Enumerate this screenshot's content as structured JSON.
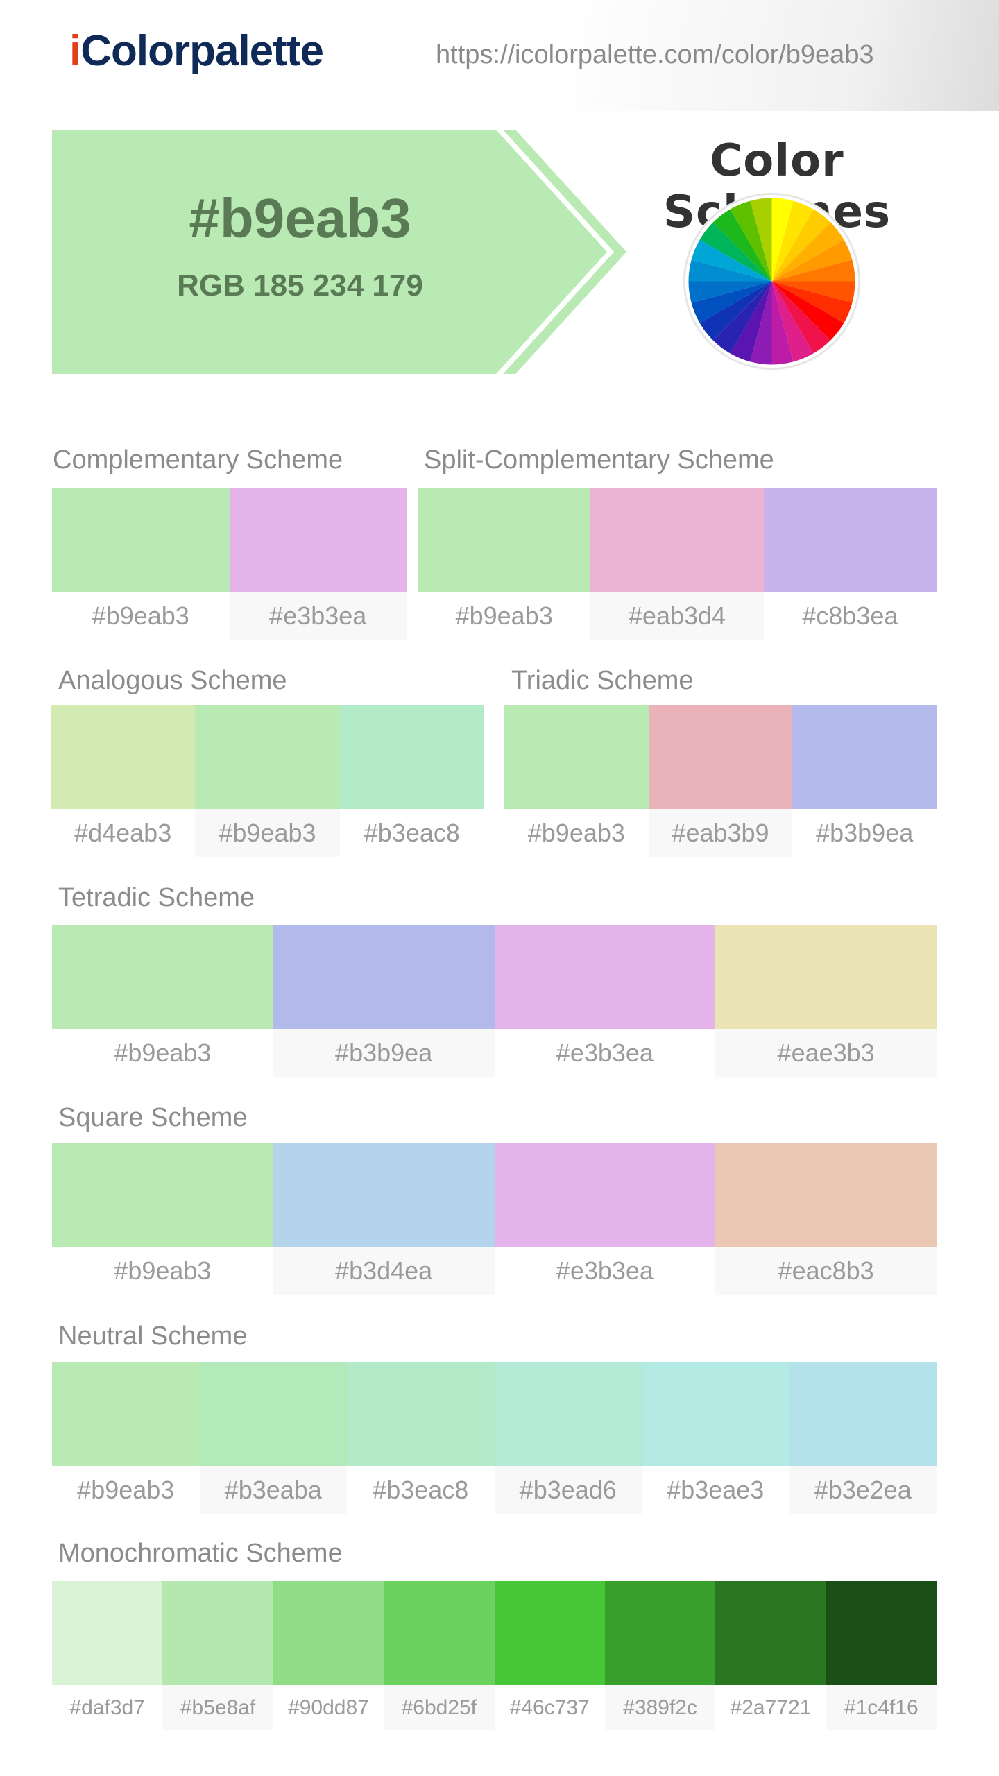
{
  "header": {
    "logo_i": "i",
    "logo_rest": "Colorpalette",
    "url": "https://icolorpalette.com/color/b9eab3"
  },
  "hero": {
    "hex": "#b9eab3",
    "rgb": "RGB 185 234 179",
    "color": "#b9eab3",
    "text_color": "#5a7a55"
  },
  "wheel_colors": [
    "#ffff00",
    "#ffe400",
    "#ffcc00",
    "#ffb000",
    "#ff9a00",
    "#ff7800",
    "#ff5500",
    "#ff2d00",
    "#ff0000",
    "#f0124a",
    "#e0208a",
    "#bd1ca6",
    "#8e1cb4",
    "#5a15b0",
    "#2a22b0",
    "#0f33b4",
    "#0050c0",
    "#0070c8",
    "#008ed0",
    "#00a7d6",
    "#00b45a",
    "#1cb81c",
    "#5fc000",
    "#a8d000"
  ],
  "page_title": "Color Schemes",
  "schemes": {
    "complementary": {
      "title": "Complementary Scheme",
      "swatches": [
        {
          "hex": "#b9eab3",
          "label": "#b9eab3"
        },
        {
          "hex": "#e3b3ea",
          "label": "#e3b3ea"
        }
      ]
    },
    "split_complementary": {
      "title": "Split-Complementary Scheme",
      "swatches": [
        {
          "hex": "#b9eab3",
          "label": "#b9eab3"
        },
        {
          "hex": "#eab3d4",
          "label": "#eab3d4"
        },
        {
          "hex": "#c8b3ea",
          "label": "#c8b3ea"
        }
      ]
    },
    "analogous": {
      "title": "Analogous Scheme",
      "swatches": [
        {
          "hex": "#d4eab3",
          "label": "#d4eab3"
        },
        {
          "hex": "#b9eab3",
          "label": "#b9eab3"
        },
        {
          "hex": "#b3eac8",
          "label": "#b3eac8"
        }
      ]
    },
    "triadic": {
      "title": "Triadic Scheme",
      "swatches": [
        {
          "hex": "#b9eab3",
          "label": "#b9eab3"
        },
        {
          "hex": "#eab3b9",
          "label": "#eab3b9"
        },
        {
          "hex": "#b3b9ea",
          "label": "#b3b9ea"
        }
      ]
    },
    "tetradic": {
      "title": "Tetradic Scheme",
      "swatches": [
        {
          "hex": "#b9eab3",
          "label": "#b9eab3"
        },
        {
          "hex": "#b3b9ea",
          "label": "#b3b9ea"
        },
        {
          "hex": "#e3b3ea",
          "label": "#e3b3ea"
        },
        {
          "hex": "#eae3b3",
          "label": "#eae3b3"
        }
      ]
    },
    "square": {
      "title": "Square Scheme",
      "swatches": [
        {
          "hex": "#b9eab3",
          "label": "#b9eab3"
        },
        {
          "hex": "#b3d4ea",
          "label": "#b3d4ea"
        },
        {
          "hex": "#e3b3ea",
          "label": "#e3b3ea"
        },
        {
          "hex": "#eac8b3",
          "label": "#eac8b3"
        }
      ]
    },
    "neutral": {
      "title": "Neutral Scheme",
      "swatches": [
        {
          "hex": "#b9eab3",
          "label": "#b9eab3"
        },
        {
          "hex": "#b3eaba",
          "label": "#b3eaba"
        },
        {
          "hex": "#b3eac8",
          "label": "#b3eac8"
        },
        {
          "hex": "#b3ead6",
          "label": "#b3ead6"
        },
        {
          "hex": "#b3eae3",
          "label": "#b3eae3"
        },
        {
          "hex": "#b3e2ea",
          "label": "#b3e2ea"
        }
      ]
    },
    "monochromatic": {
      "title": "Monochromatic Scheme",
      "swatches": [
        {
          "hex": "#daf3d7",
          "label": "#daf3d7"
        },
        {
          "hex": "#b5e8af",
          "label": "#b5e8af"
        },
        {
          "hex": "#90dd87",
          "label": "#90dd87"
        },
        {
          "hex": "#6bd25f",
          "label": "#6bd25f"
        },
        {
          "hex": "#46c737",
          "label": "#46c737"
        },
        {
          "hex": "#389f2c",
          "label": "#389f2c"
        },
        {
          "hex": "#2a7721",
          "label": "#2a7721"
        },
        {
          "hex": "#1c4f16",
          "label": "#1c4f16"
        }
      ]
    }
  }
}
